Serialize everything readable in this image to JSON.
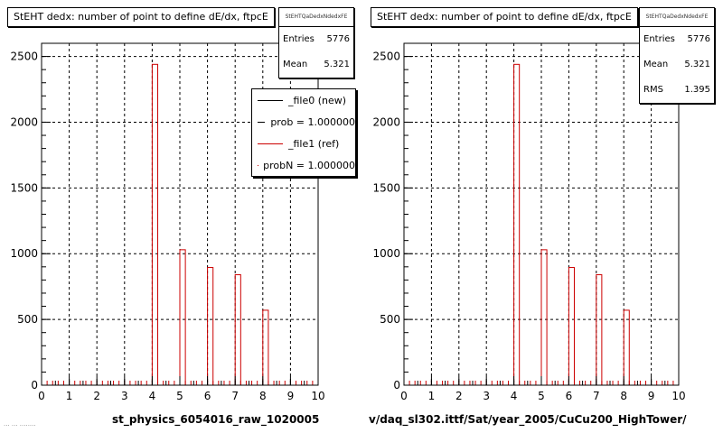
{
  "footer": {
    "text": "... ... ........ "
  },
  "chart_data": [
    {
      "type": "bar",
      "title": "StEHT dedx: number of point to define dE/dx, ftpcE",
      "xlabel": "st_physics_6054016_raw_1020005",
      "ylabel": "",
      "xlim": [
        0,
        10
      ],
      "ylim": [
        0,
        2600
      ],
      "xticks": [
        0,
        1,
        2,
        3,
        4,
        5,
        6,
        7,
        8,
        9,
        10
      ],
      "yticks": [
        0,
        500,
        1000,
        1500,
        2000,
        2500
      ],
      "grid": true,
      "bar_width": 0.2,
      "series": [
        {
          "name": "_file1 (ref)",
          "color": "#cc0000",
          "x": [
            4.1,
            5.1,
            6.1,
            7.1,
            8.1
          ],
          "values": [
            2440,
            1030,
            895,
            840,
            570
          ]
        }
      ],
      "stats": {
        "title": "StEHTQaDedxNdedxFE",
        "rows": [
          {
            "label": "Entries",
            "value": "5776"
          },
          {
            "label": "Mean",
            "value": "5.321"
          }
        ]
      },
      "legend": {
        "placement": "top-right",
        "entries": [
          {
            "label": "_file0 (new)",
            "color": "#000000"
          },
          {
            "label": "prob = 1.000000",
            "color": "#000000"
          },
          {
            "label": "_file1 (ref)",
            "color": "#cc0000"
          },
          {
            "label": "probN = 1.000000",
            "color": "#cc0000"
          }
        ]
      }
    },
    {
      "type": "bar",
      "title": "StEHT dedx: number of point to define dE/dx, ftpcE",
      "xlabel": "v/daq_sl302.ittf/Sat/year_2005/CuCu200_HighTower/",
      "ylabel": "",
      "xlim": [
        0,
        10
      ],
      "ylim": [
        0,
        2600
      ],
      "xticks": [
        0,
        1,
        2,
        3,
        4,
        5,
        6,
        7,
        8,
        9,
        10
      ],
      "yticks": [
        0,
        500,
        1000,
        1500,
        2000,
        2500
      ],
      "grid": true,
      "bar_width": 0.2,
      "series": [
        {
          "color": "#cc0000",
          "x": [
            4.1,
            5.1,
            6.1,
            7.1,
            8.1
          ],
          "values": [
            2440,
            1030,
            895,
            840,
            570
          ]
        }
      ],
      "stats": {
        "title": "StEHTQaDedxNdedxFE",
        "rows": [
          {
            "label": "Entries",
            "value": "5776"
          },
          {
            "label": "Mean",
            "value": "5.321"
          },
          {
            "label": "RMS",
            "value": "1.395"
          }
        ]
      }
    }
  ]
}
